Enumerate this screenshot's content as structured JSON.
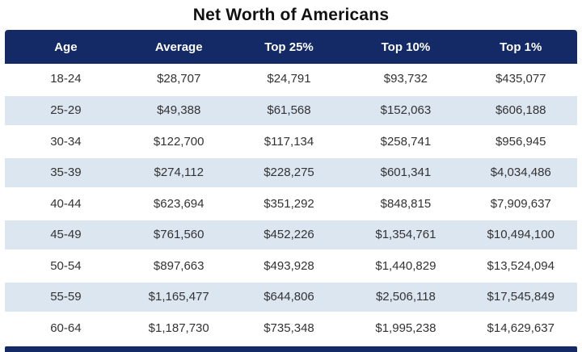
{
  "title": "Net Worth of Americans",
  "colors": {
    "header_bg": "#142A66",
    "header_text": "#FFFFFF",
    "row_bg": "#FFFFFF",
    "row_alt_bg": "#DCE6F1",
    "body_text": "#333333",
    "title_text": "#111111"
  },
  "chart_data": {
    "type": "table",
    "title": "Net Worth of Americans",
    "columns": [
      "Age",
      "Average",
      "Top 25%",
      "Top 10%",
      "Top 1%"
    ],
    "rows": [
      [
        "18-24",
        "$28,707",
        "$24,791",
        "$93,732",
        "$435,077"
      ],
      [
        "25-29",
        "$49,388",
        "$61,568",
        "$152,063",
        "$606,188"
      ],
      [
        "30-34",
        "$122,700",
        "$117,134",
        "$258,741",
        "$956,945"
      ],
      [
        "35-39",
        "$274,112",
        "$228,275",
        "$601,341",
        "$4,034,486"
      ],
      [
        "40-44",
        "$623,694",
        "$351,292",
        "$848,815",
        "$7,909,637"
      ],
      [
        "45-49",
        "$761,560",
        "$452,226",
        "$1,354,761",
        "$10,494,100"
      ],
      [
        "50-54",
        "$897,663",
        "$493,928",
        "$1,440,829",
        "$13,524,094"
      ],
      [
        "55-59",
        "$1,165,477",
        "$644,806",
        "$2,506,118",
        "$17,545,849"
      ],
      [
        "60-64",
        "$1,187,730",
        "$735,348",
        "$1,995,238",
        "$14,629,637"
      ]
    ]
  }
}
